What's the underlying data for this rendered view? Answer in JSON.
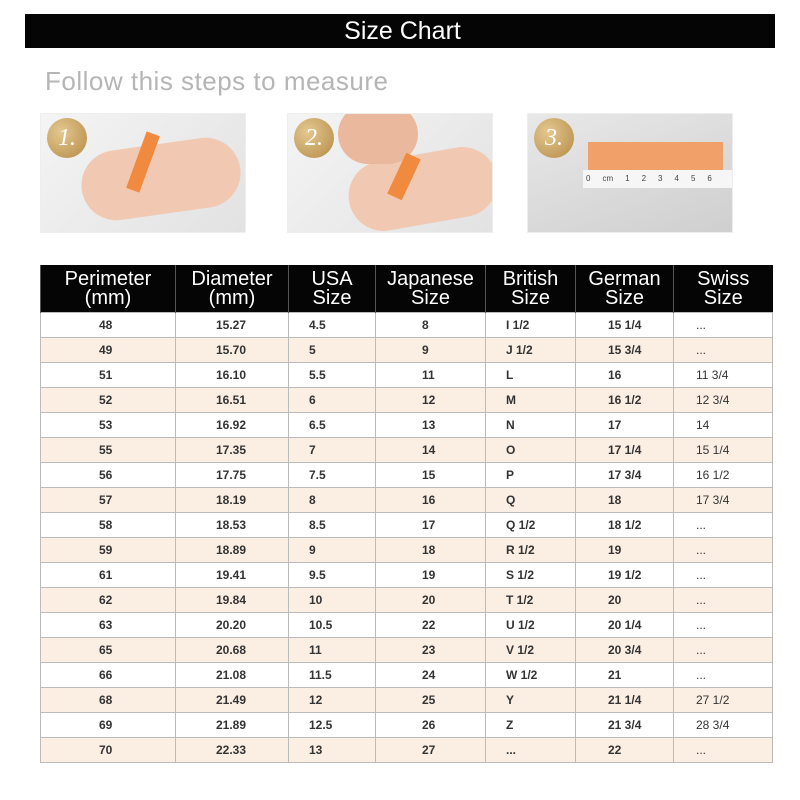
{
  "title": "Size Chart",
  "subtitle": "Follow this steps to measure",
  "steps": [
    {
      "number": "1."
    },
    {
      "number": "2."
    },
    {
      "number": "3.",
      "ruler_labels": [
        "0",
        "cm",
        "1",
        "2",
        "3",
        "4",
        "5",
        "6"
      ]
    }
  ],
  "table": {
    "headers": [
      [
        "Perimeter",
        "(mm)"
      ],
      [
        "Diameter",
        "(mm)"
      ],
      [
        "USA",
        "Size"
      ],
      [
        "Japanese",
        "Size"
      ],
      [
        "British",
        "Size"
      ],
      [
        "German",
        "Size"
      ],
      [
        "Swiss",
        "Size"
      ]
    ],
    "rows": [
      [
        "48",
        "15.27",
        "4.5",
        "8",
        "I 1/2",
        "15 1/4",
        "..."
      ],
      [
        "49",
        "15.70",
        "5",
        "9",
        "J 1/2",
        "15 3/4",
        "..."
      ],
      [
        "51",
        "16.10",
        "5.5",
        "11",
        "L",
        "16",
        "11 3/4"
      ],
      [
        "52",
        "16.51",
        "6",
        "12",
        "M",
        "16 1/2",
        "12 3/4"
      ],
      [
        "53",
        "16.92",
        "6.5",
        "13",
        "N",
        "17",
        "14"
      ],
      [
        "55",
        "17.35",
        "7",
        "14",
        "O",
        "17 1/4",
        "15 1/4"
      ],
      [
        "56",
        "17.75",
        "7.5",
        "15",
        "P",
        "17 3/4",
        "16 1/2"
      ],
      [
        "57",
        "18.19",
        "8",
        "16",
        "Q",
        "18",
        "17 3/4"
      ],
      [
        "58",
        "18.53",
        "8.5",
        "17",
        "Q 1/2",
        "18 1/2",
        "..."
      ],
      [
        "59",
        "18.89",
        "9",
        "18",
        "R 1/2",
        "19",
        "..."
      ],
      [
        "61",
        "19.41",
        "9.5",
        "19",
        "S 1/2",
        "19 1/2",
        "..."
      ],
      [
        "62",
        "19.84",
        "10",
        "20",
        "T 1/2",
        "20",
        "..."
      ],
      [
        "63",
        "20.20",
        "10.5",
        "22",
        "U 1/2",
        "20 1/4",
        "..."
      ],
      [
        "65",
        "20.68",
        "11",
        "23",
        "V 1/2",
        "20 3/4",
        "..."
      ],
      [
        "66",
        "21.08",
        "11.5",
        "24",
        "W 1/2",
        "21",
        "..."
      ],
      [
        "68",
        "21.49",
        "12",
        "25",
        "Y",
        "21 1/4",
        "27 1/2"
      ],
      [
        "69",
        "21.89",
        "12.5",
        "26",
        "Z",
        "21 3/4",
        "28 3/4"
      ],
      [
        "70",
        "22.33",
        "13",
        "27",
        "...",
        "22",
        "..."
      ]
    ]
  }
}
